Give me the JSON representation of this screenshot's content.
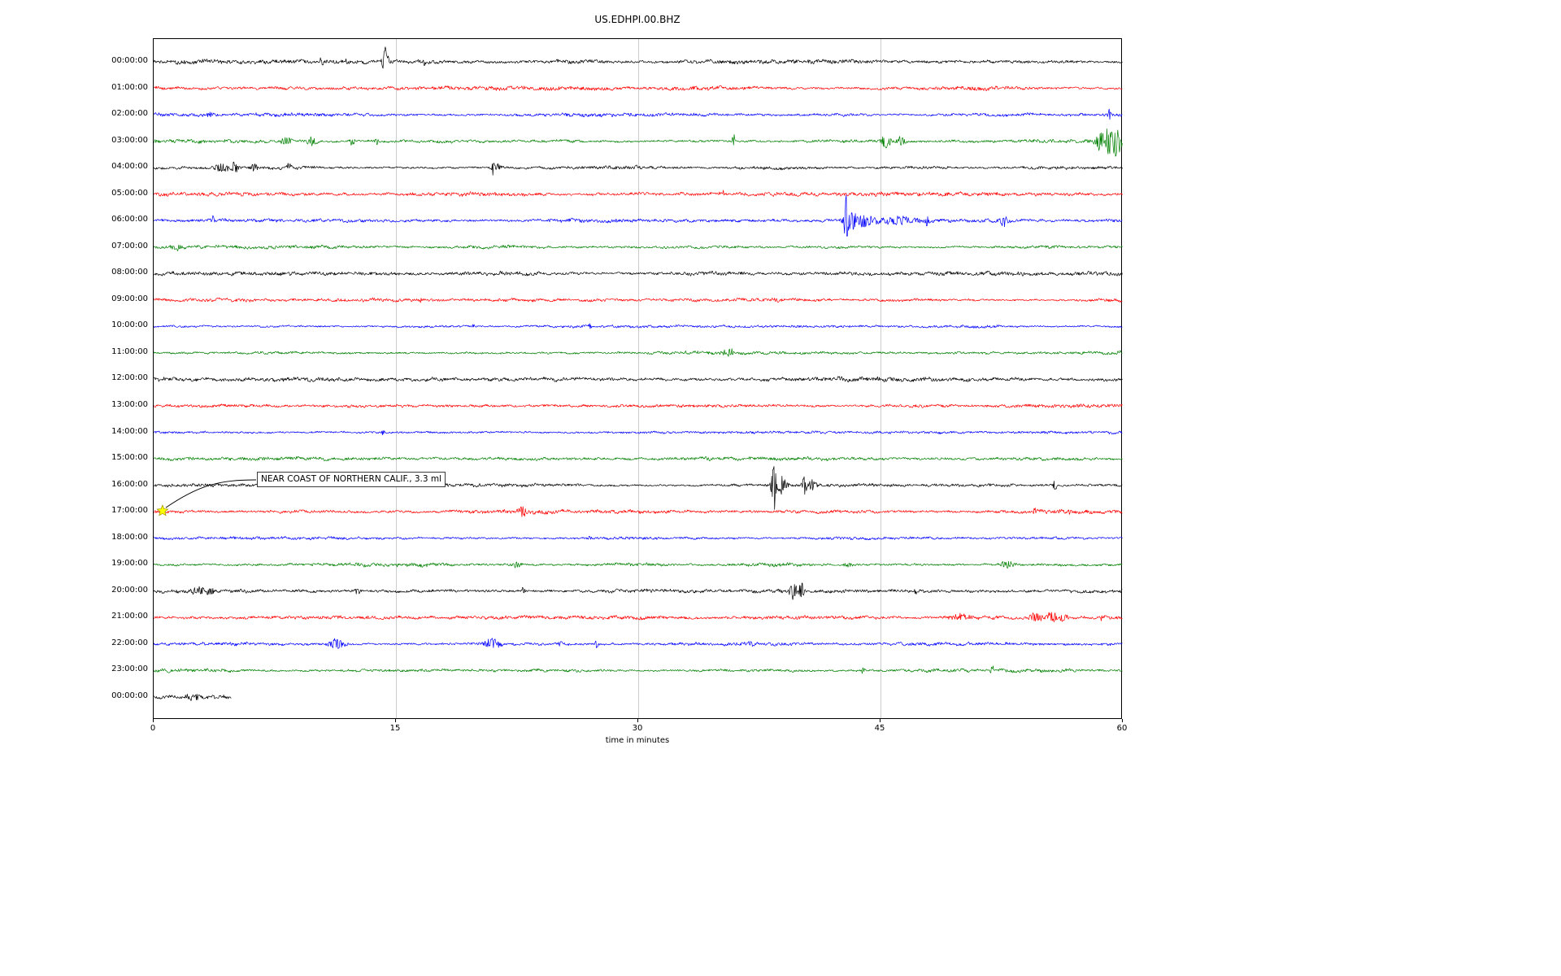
{
  "chart_data": {
    "type": "line",
    "subtype": "helicorder-seismogram",
    "title": "US.EDHPI.00.BHZ",
    "xlabel": "time in minutes",
    "xlim": [
      0,
      60
    ],
    "x_ticks": [
      0,
      15,
      30,
      45,
      60
    ],
    "grid_x_minutes": [
      15,
      30,
      45
    ],
    "grid_color": "#cccccc",
    "trace_colors_cycle": [
      "#000000",
      "#ff0000",
      "#0000ff",
      "#008000"
    ],
    "legend": "none",
    "rows": [
      {
        "label": "00:00:00",
        "color": "#000000",
        "seed": 101,
        "base": 2.2,
        "dur": 60,
        "events": [
          [
            10.4,
            8,
            0.08
          ],
          [
            11.9,
            4,
            0.06
          ],
          [
            14.35,
            26,
            0.12
          ],
          [
            16.8,
            5,
            0.06
          ]
        ]
      },
      {
        "label": "01:00:00",
        "color": "#ff0000",
        "seed": 102,
        "base": 2.4,
        "dur": 60,
        "events": []
      },
      {
        "label": "02:00:00",
        "color": "#0000ff",
        "seed": 103,
        "base": 2.0,
        "dur": 60,
        "events": [
          [
            3.5,
            4,
            0.12
          ],
          [
            59.2,
            9,
            0.06
          ]
        ]
      },
      {
        "label": "03:00:00",
        "color": "#008000",
        "seed": 104,
        "base": 2.2,
        "dur": 60,
        "events": [
          [
            8.2,
            5,
            0.3
          ],
          [
            9.8,
            6,
            0.2
          ],
          [
            12.3,
            6,
            0.12
          ],
          [
            13.8,
            5,
            0.1
          ],
          [
            35.9,
            8,
            0.07
          ],
          [
            45.3,
            8,
            0.25
          ],
          [
            46.3,
            6,
            0.2
          ],
          [
            58.6,
            10,
            0.25
          ],
          [
            59.1,
            18,
            0.2
          ],
          [
            59.6,
            16,
            0.25
          ]
        ]
      },
      {
        "label": "04:00:00",
        "color": "#000000",
        "seed": 105,
        "base": 2.0,
        "dur": 60,
        "events": [
          [
            4.2,
            6,
            0.3
          ],
          [
            5.0,
            7,
            0.2
          ],
          [
            6.2,
            4,
            0.2
          ],
          [
            8.4,
            5,
            0.12
          ],
          [
            21.0,
            9,
            0.08
          ],
          [
            21.3,
            4,
            0.2
          ]
        ]
      },
      {
        "label": "05:00:00",
        "color": "#ff0000",
        "seed": 106,
        "base": 2.2,
        "dur": 60,
        "events": [
          [
            35.3,
            5,
            0.05
          ],
          [
            43.0,
            4,
            0.08
          ]
        ]
      },
      {
        "label": "06:00:00",
        "color": "#0000ff",
        "seed": 107,
        "base": 2.2,
        "dur": 60,
        "events": [
          [
            3.7,
            5,
            0.08
          ],
          [
            42.85,
            34,
            0.07
          ],
          [
            43.1,
            12,
            0.3
          ],
          [
            44.0,
            7,
            0.6
          ],
          [
            46.0,
            5,
            1.0
          ],
          [
            47.9,
            8,
            0.1
          ],
          [
            52.6,
            7,
            0.2
          ]
        ]
      },
      {
        "label": "07:00:00",
        "color": "#008000",
        "seed": 108,
        "base": 2.0,
        "dur": 60,
        "events": [
          [
            1.5,
            4,
            0.3
          ]
        ]
      },
      {
        "label": "08:00:00",
        "color": "#000000",
        "seed": 109,
        "base": 2.5,
        "dur": 60,
        "events": []
      },
      {
        "label": "09:00:00",
        "color": "#ff0000",
        "seed": 110,
        "base": 2.0,
        "dur": 60,
        "events": [
          [
            16.5,
            3,
            0.1
          ]
        ]
      },
      {
        "label": "10:00:00",
        "color": "#0000ff",
        "seed": 111,
        "base": 1.6,
        "dur": 60,
        "events": [
          [
            19.8,
            4,
            0.06
          ],
          [
            27.0,
            3,
            0.06
          ]
        ]
      },
      {
        "label": "11:00:00",
        "color": "#008000",
        "seed": 112,
        "base": 1.9,
        "dur": 60,
        "events": [
          [
            35.6,
            5,
            0.25
          ]
        ]
      },
      {
        "label": "12:00:00",
        "color": "#000000",
        "seed": 113,
        "base": 2.5,
        "dur": 60,
        "events": []
      },
      {
        "label": "13:00:00",
        "color": "#ff0000",
        "seed": 114,
        "base": 2.1,
        "dur": 60,
        "events": []
      },
      {
        "label": "14:00:00",
        "color": "#0000ff",
        "seed": 115,
        "base": 1.9,
        "dur": 60,
        "events": [
          [
            14.2,
            5,
            0.06
          ],
          [
            23.0,
            3,
            0.06
          ]
        ]
      },
      {
        "label": "15:00:00",
        "color": "#008000",
        "seed": 116,
        "base": 2.0,
        "dur": 60,
        "events": []
      },
      {
        "label": "16:00:00",
        "color": "#000000",
        "seed": 117,
        "base": 2.0,
        "dur": 60,
        "events": [
          [
            38.4,
            30,
            0.12
          ],
          [
            38.9,
            12,
            0.2
          ],
          [
            40.3,
            14,
            0.1
          ],
          [
            40.8,
            8,
            0.15
          ],
          [
            55.8,
            7,
            0.08
          ]
        ]
      },
      {
        "label": "17:00:00",
        "color": "#ff0000",
        "seed": 118,
        "base": 2.2,
        "dur": 60,
        "events": [
          [
            22.9,
            6,
            0.2
          ],
          [
            54.6,
            6,
            0.1
          ],
          [
            56.8,
            4,
            0.1
          ]
        ]
      },
      {
        "label": "18:00:00",
        "color": "#0000ff",
        "seed": 119,
        "base": 1.9,
        "dur": 60,
        "events": [
          [
            27.0,
            4,
            0.05
          ]
        ]
      },
      {
        "label": "19:00:00",
        "color": "#008000",
        "seed": 120,
        "base": 2.1,
        "dur": 60,
        "events": [
          [
            22.5,
            4,
            0.2
          ],
          [
            43.0,
            3,
            0.2
          ],
          [
            52.8,
            5,
            0.3
          ]
        ]
      },
      {
        "label": "20:00:00",
        "color": "#000000",
        "seed": 121,
        "base": 2.0,
        "dur": 60,
        "events": [
          [
            2.8,
            5,
            0.4
          ],
          [
            3.6,
            5,
            0.2
          ],
          [
            12.6,
            5,
            0.15
          ],
          [
            22.9,
            5,
            0.1
          ],
          [
            39.6,
            12,
            0.15
          ],
          [
            40.1,
            10,
            0.12
          ],
          [
            47.2,
            4,
            0.1
          ]
        ]
      },
      {
        "label": "21:00:00",
        "color": "#ff0000",
        "seed": 122,
        "base": 2.1,
        "dur": 60,
        "events": [
          [
            49.9,
            4,
            0.4
          ],
          [
            54.6,
            6,
            0.3
          ],
          [
            55.6,
            7,
            0.25
          ],
          [
            56.3,
            5,
            0.2
          ],
          [
            58.7,
            4,
            0.1
          ]
        ]
      },
      {
        "label": "22:00:00",
        "color": "#0000ff",
        "seed": 123,
        "base": 2.0,
        "dur": 60,
        "events": [
          [
            11.3,
            6,
            0.4
          ],
          [
            20.9,
            6,
            0.35
          ],
          [
            25.2,
            4,
            0.1
          ],
          [
            27.4,
            7,
            0.06
          ],
          [
            37.0,
            3,
            0.2
          ]
        ]
      },
      {
        "label": "23:00:00",
        "color": "#008000",
        "seed": 124,
        "base": 1.9,
        "dur": 60,
        "events": [
          [
            43.9,
            5,
            0.08
          ],
          [
            51.9,
            9,
            0.06
          ]
        ]
      },
      {
        "label": "00:00:00",
        "color": "#000000",
        "seed": 125,
        "base": 2.6,
        "dur": 4.8,
        "events": [
          [
            2.5,
            4,
            0.3
          ]
        ]
      }
    ],
    "annotation": {
      "text": "NEAR COAST OF NORTHERN CALIF., 3.3 ml",
      "row": 17,
      "t": 0.6,
      "marker": "star",
      "marker_color": "#ffff00"
    }
  }
}
